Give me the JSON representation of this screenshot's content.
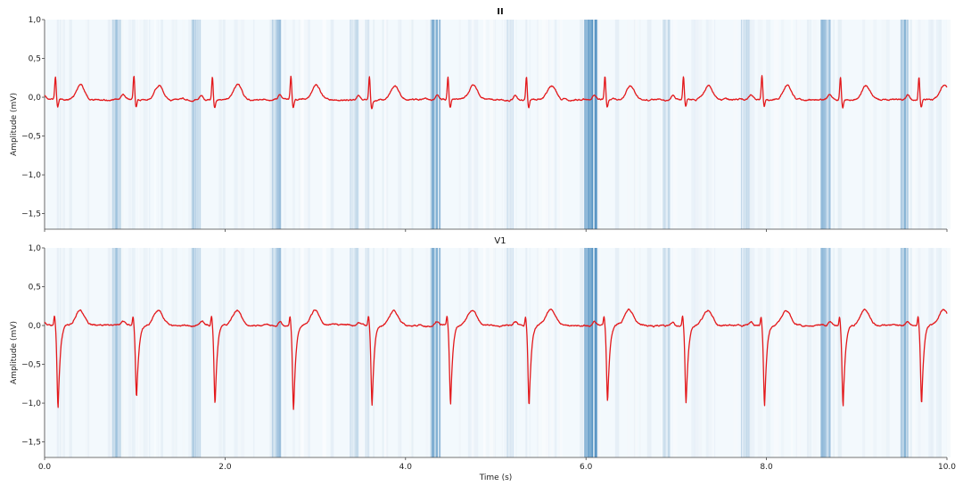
{
  "colors": {
    "signal": "#e3191c",
    "saliency_base": "#f3f9fd",
    "saliency_peak": "#2f7bb5",
    "axis": "#444444"
  },
  "chart_data": [
    {
      "type": "line",
      "title": "II",
      "ylabel": "Amplitude (mV)",
      "xlabel": "",
      "xlim": [
        0,
        10
      ],
      "ylim": [
        -1.7,
        1.0
      ],
      "yticks": [
        "1,0",
        "0,5",
        "0,0",
        "−0,5",
        "−1,0",
        "−1,5"
      ],
      "ytick_values": [
        1.0,
        0.5,
        0.0,
        -0.5,
        -1.0,
        -1.5
      ],
      "beats": [
        0.12,
        0.99,
        1.86,
        2.73,
        3.6,
        4.47,
        5.34,
        6.21,
        7.08,
        7.95,
        8.82,
        9.69
      ],
      "r_peak": 0.3,
      "s_trough": -0.08,
      "t_wave": 0.18,
      "baseline": -0.03,
      "series": [
        {
          "values_description_free": true
        }
      ]
    },
    {
      "type": "line",
      "title": "V1",
      "ylabel": "Amplitude (mV)",
      "xlabel": "Time (s)",
      "xlim": [
        0,
        10
      ],
      "ylim": [
        -1.7,
        1.0
      ],
      "xticks": [
        "0.0",
        "2.0",
        "4.0",
        "6.0",
        "8.0",
        "10.0"
      ],
      "xtick_values": [
        0,
        2,
        4,
        6,
        8,
        10
      ],
      "yticks": [
        "1,0",
        "0,5",
        "0,0",
        "−0,5",
        "−1,0",
        "−1,5"
      ],
      "ytick_values": [
        1.0,
        0.5,
        0.0,
        -0.5,
        -1.0,
        -1.5
      ],
      "beats": [
        0.12,
        0.99,
        1.86,
        2.73,
        3.6,
        4.47,
        5.34,
        6.21,
        7.08,
        7.95,
        8.82,
        9.69
      ],
      "s_troughs": [
        -1.05,
        -0.92,
        -1.02,
        -1.08,
        -1.02,
        -1.0,
        -1.03,
        -0.98,
        -1.01,
        -1.04,
        -1.02,
        -1.02
      ],
      "r_peak": 0.12,
      "t_wave": 0.2,
      "baseline": 0.0,
      "series": [
        {
          "values_description_free": true
        }
      ]
    }
  ],
  "saliency_bands": [
    {
      "x": 0.75,
      "w": 0.1,
      "level": 0.55
    },
    {
      "x": 1.63,
      "w": 0.1,
      "level": 0.55
    },
    {
      "x": 2.52,
      "w": 0.1,
      "level": 0.6
    },
    {
      "x": 3.38,
      "w": 0.1,
      "level": 0.35
    },
    {
      "x": 3.55,
      "w": 0.05,
      "level": 0.25
    },
    {
      "x": 4.27,
      "w": 0.12,
      "level": 0.8
    },
    {
      "x": 5.12,
      "w": 0.08,
      "level": 0.3
    },
    {
      "x": 5.98,
      "w": 0.14,
      "level": 0.95
    },
    {
      "x": 6.85,
      "w": 0.08,
      "level": 0.35
    },
    {
      "x": 7.72,
      "w": 0.1,
      "level": 0.45
    },
    {
      "x": 8.6,
      "w": 0.12,
      "level": 0.7
    },
    {
      "x": 9.48,
      "w": 0.1,
      "level": 0.75
    }
  ]
}
